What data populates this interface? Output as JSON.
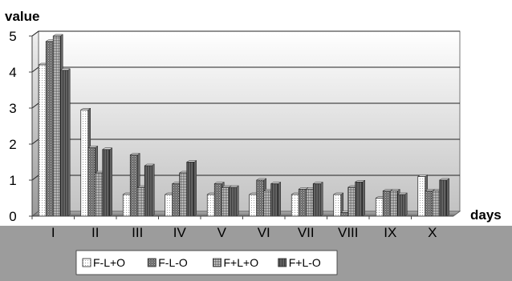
{
  "chart_data": {
    "type": "bar",
    "title": "",
    "ylabel": "value",
    "xlabel": "days",
    "ylim": [
      0,
      5
    ],
    "yticks": [
      0,
      1,
      2,
      3,
      4,
      5
    ],
    "grid": true,
    "legend_position": "bottom",
    "categories": [
      "I",
      "II",
      "III",
      "IV",
      "V",
      "VI",
      "VII",
      "VIII",
      "IX",
      "X"
    ],
    "series": [
      {
        "name": "F-L+O",
        "pattern": "dots",
        "values": [
          4.2,
          2.95,
          0.6,
          0.6,
          0.6,
          0.6,
          0.6,
          0.6,
          0.5,
          1.1
        ]
      },
      {
        "name": "F-L-O",
        "pattern": "stipple",
        "values": [
          4.85,
          1.9,
          1.7,
          0.9,
          0.9,
          1.0,
          0.75,
          0.1,
          0.7,
          0.7
        ]
      },
      {
        "name": "F+L+O",
        "pattern": "grid",
        "values": [
          5.0,
          1.2,
          0.8,
          1.2,
          0.8,
          0.7,
          0.75,
          0.8,
          0.7,
          0.7
        ]
      },
      {
        "name": "F+L-O",
        "pattern": "vstripes",
        "values": [
          4.05,
          1.85,
          1.4,
          1.5,
          0.8,
          0.9,
          0.9,
          0.95,
          0.6,
          1.0
        ]
      }
    ]
  }
}
